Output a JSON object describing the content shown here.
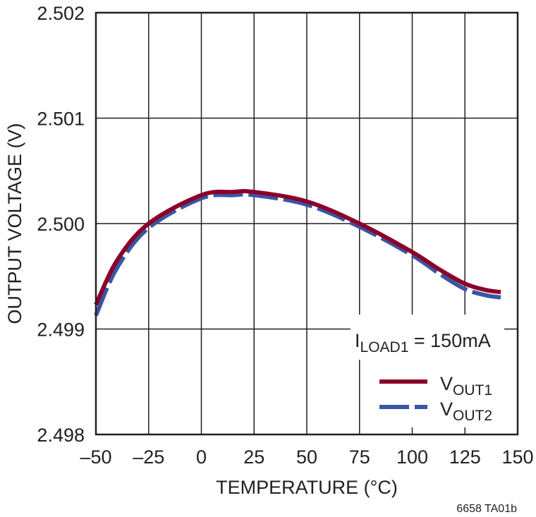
{
  "chart_data": {
    "type": "line",
    "title": "",
    "xlabel": "TEMPERATURE (°C)",
    "ylabel": "OUTPUT VOLTAGE (V)",
    "xlim": [
      -50,
      150
    ],
    "ylim": [
      2.498,
      2.502
    ],
    "xticks": [
      "–50",
      "–25",
      "0",
      "25",
      "50",
      "75",
      "100",
      "125",
      "150"
    ],
    "yticks": [
      "2.498",
      "2.499",
      "2.500",
      "2.501",
      "2.502"
    ],
    "grid": true,
    "legend_placement": "bottom-right",
    "annotation": {
      "main": "I",
      "sub": "LOAD1",
      "rest": " = 150mA"
    },
    "series": [
      {
        "name": "VOUT1",
        "label_main": "V",
        "label_sub": "OUT1",
        "color": "#8b0029",
        "style": "solid",
        "x": [
          -50,
          -40,
          -25,
          0,
          15,
          25,
          50,
          75,
          100,
          112.5,
          125,
          135,
          142
        ],
        "y": [
          2.49923,
          2.49965,
          2.5,
          2.50027,
          2.5003,
          2.5003,
          2.50021,
          2.5,
          2.49973,
          2.49957,
          2.49943,
          2.49937,
          2.49935
        ]
      },
      {
        "name": "VOUT2",
        "label_main": "V",
        "label_sub": "OUT2",
        "color": "#3a55a4",
        "style": "dashed",
        "x": [
          -50,
          -40,
          -25,
          0,
          15,
          25,
          50,
          75,
          100,
          112.5,
          125,
          135,
          142
        ],
        "y": [
          2.49913,
          2.49958,
          2.49996,
          2.50024,
          2.50027,
          2.50027,
          2.50018,
          2.49997,
          2.4997,
          2.49953,
          2.49938,
          2.49932,
          2.4993
        ]
      }
    ],
    "figure_id": "6658 TA01b"
  }
}
